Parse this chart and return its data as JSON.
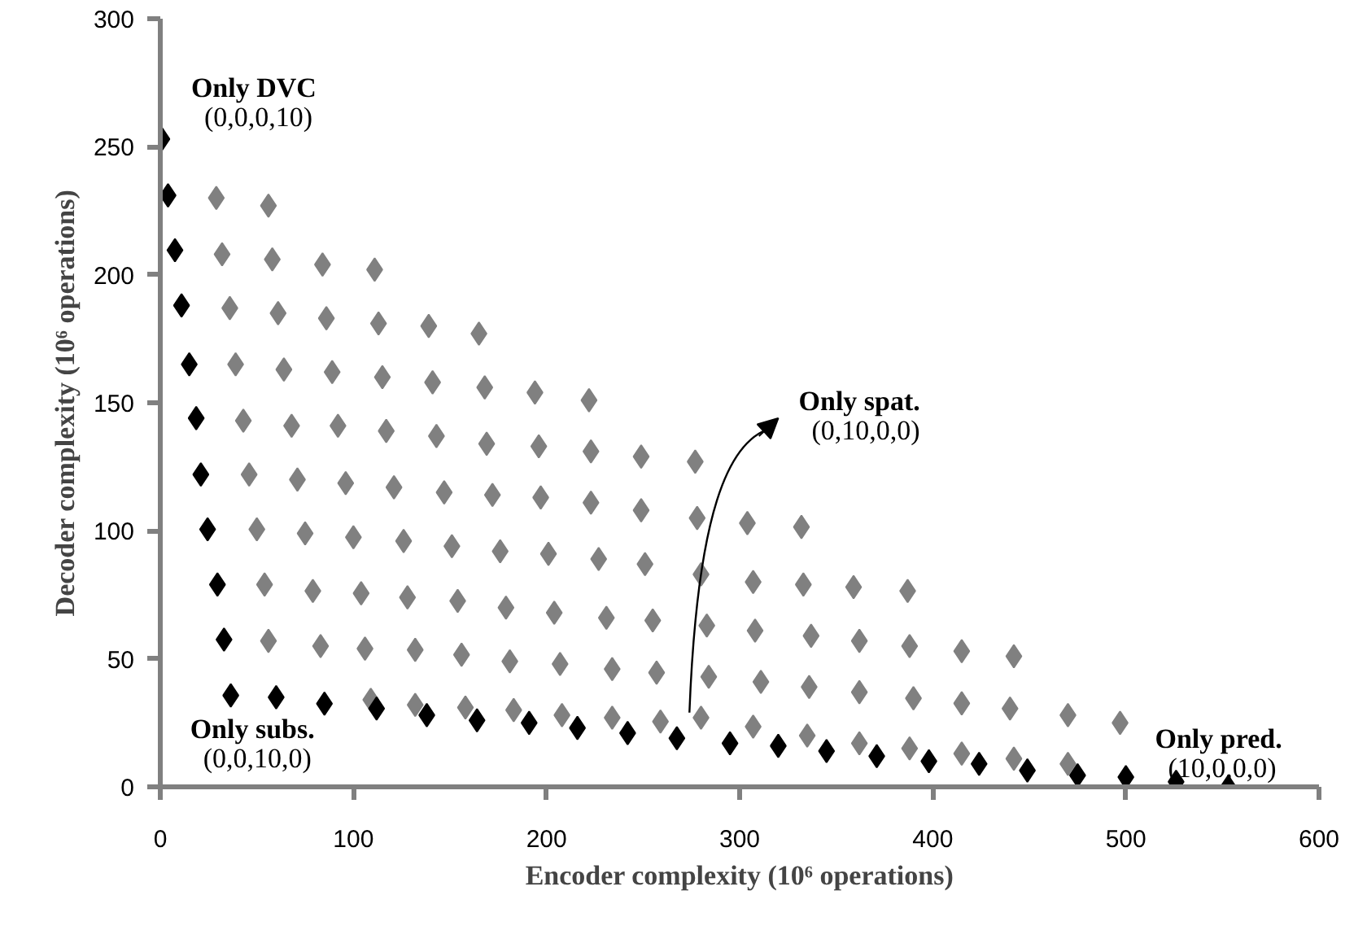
{
  "chart_data": {
    "type": "scatter",
    "xlabel": "Encoder complexity (10⁶ operations)",
    "ylabel": "Decoder complexity (10⁶ operations)",
    "xlim": [
      0,
      600
    ],
    "ylim": [
      0,
      300
    ],
    "xticks": [
      0,
      100,
      200,
      300,
      400,
      500,
      600
    ],
    "yticks": [
      0,
      50,
      100,
      150,
      200,
      250,
      300
    ],
    "grid": false,
    "marker": "diamond",
    "series": [
      {
        "color": "#808080",
        "x": [
          29,
          56,
          32,
          58,
          84,
          111,
          36,
          61,
          86,
          113,
          139,
          165,
          39,
          64,
          89,
          115,
          141,
          168,
          194,
          222,
          43,
          68,
          92,
          117,
          143,
          169,
          196,
          223,
          249,
          277,
          46,
          71,
          96,
          121,
          147,
          172,
          197,
          223,
          249,
          278,
          304,
          332,
          50,
          75,
          100,
          126,
          151,
          176,
          201,
          227,
          251,
          280,
          307,
          333,
          359,
          387,
          54,
          79,
          104,
          128,
          154,
          179,
          204,
          231,
          255,
          283,
          308,
          337,
          362,
          388,
          415,
          442,
          56,
          83,
          106,
          132,
          156,
          181,
          207,
          234,
          257,
          284,
          311,
          336,
          362,
          390,
          415,
          440,
          470,
          497,
          109,
          132,
          158,
          183,
          208,
          234,
          259,
          280,
          307,
          335,
          362,
          388,
          415,
          442,
          470
        ],
        "values": [
          230,
          227,
          208,
          206,
          204,
          202,
          187,
          185,
          183,
          181,
          180,
          177,
          165,
          163,
          162,
          160,
          158,
          156,
          154,
          151,
          143,
          141,
          141,
          139,
          137,
          134,
          133,
          131,
          129,
          127,
          122,
          120,
          118.6,
          117,
          115,
          114,
          113,
          111,
          108,
          105,
          103,
          101.5,
          100.6,
          99,
          97.5,
          96,
          94,
          92,
          91,
          89,
          87,
          83,
          80,
          79,
          78,
          76.5,
          79,
          76.5,
          75.6,
          74,
          72.6,
          70,
          68,
          66,
          65,
          63,
          61,
          59,
          57,
          55,
          53,
          51,
          57,
          55,
          54,
          53.5,
          51.6,
          49,
          48,
          46,
          44.6,
          43,
          41,
          39,
          37,
          34.6,
          32.6,
          30.6,
          28,
          25,
          34,
          32,
          31,
          30,
          28,
          27,
          25.5,
          27,
          23.5,
          20,
          17,
          15,
          13,
          11,
          9
        ]
      },
      {
        "color": "#000000",
        "x": [
          0.8,
          4,
          7.6,
          11,
          15,
          18.6,
          21,
          24.5,
          29.6,
          33,
          36.5,
          60,
          85,
          112,
          138,
          164,
          191,
          216,
          242,
          267.5,
          295,
          320,
          345,
          371,
          398,
          424,
          449,
          475,
          500,
          526,
          553
        ],
        "values": [
          253,
          231,
          209.6,
          188,
          165,
          144,
          122,
          100.6,
          79,
          57.5,
          35.7,
          35,
          32.5,
          30.6,
          28,
          26,
          25,
          23,
          21,
          19,
          17,
          16,
          14,
          12,
          10,
          9,
          6.4,
          4.5,
          3.8,
          2,
          0
        ]
      }
    ],
    "annotations": [
      {
        "text": "Only DVC\n(0,0,0,10)",
        "x": 0.8,
        "y": 253
      },
      {
        "text": "Only subs.\n(0,0,10,0)",
        "x": 36.5,
        "y": 35.7
      },
      {
        "text": "Only spat.\n(0,10,0,0)",
        "x": 280,
        "y": 27
      },
      {
        "text": "Only pred.\n(10,0,0,0)",
        "x": 553,
        "y": 0
      }
    ]
  }
}
